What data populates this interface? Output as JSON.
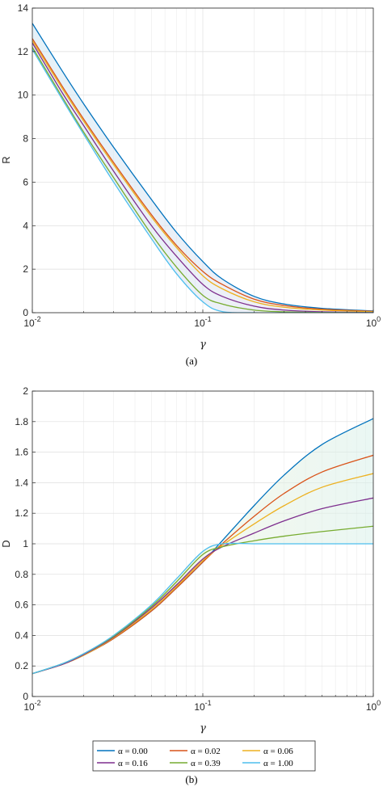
{
  "colors": {
    "series": [
      "#0072BD",
      "#D95319",
      "#EDB120",
      "#7E2F8E",
      "#77AC30",
      "#4DBEEE"
    ],
    "grid": "#e6e6e6",
    "axis": "#262626"
  },
  "legend": {
    "placement": "bottom-center",
    "columns": 3,
    "entries": [
      "α = 0.00",
      "α = 0.02",
      "α = 0.06",
      "α = 0.16",
      "α = 0.39",
      "α = 1.00"
    ]
  },
  "chart_data": [
    {
      "type": "line",
      "caption": "(a)",
      "xlabel": "γ",
      "ylabel": "R",
      "xscale": "log",
      "xlim": [
        0.01,
        1
      ],
      "ylim": [
        0,
        14
      ],
      "grid": true,
      "x_tick_labels": [
        "10^-2",
        "10^-1",
        "10^0"
      ],
      "y_ticks": [
        0,
        2,
        4,
        6,
        8,
        10,
        12,
        14
      ],
      "x": [
        0.01,
        0.015,
        0.02,
        0.03,
        0.05,
        0.07,
        0.1,
        0.13,
        0.2,
        0.3,
        0.5,
        1.0
      ],
      "series": [
        {
          "name": "α = 0.00",
          "values": [
            13.3,
            11.1,
            9.6,
            7.6,
            5.2,
            3.7,
            2.35,
            1.55,
            0.75,
            0.4,
            0.2,
            0.08
          ]
        },
        {
          "name": "α = 0.02",
          "values": [
            12.6,
            10.4,
            8.9,
            6.9,
            4.5,
            3.1,
            1.9,
            1.3,
            0.62,
            0.33,
            0.16,
            0.06
          ]
        },
        {
          "name": "α = 0.06",
          "values": [
            12.5,
            10.3,
            8.8,
            6.8,
            4.4,
            3.0,
            1.7,
            1.1,
            0.5,
            0.25,
            0.12,
            0.04
          ]
        },
        {
          "name": "α = 0.16",
          "values": [
            12.4,
            10.1,
            8.6,
            6.5,
            4.0,
            2.6,
            1.3,
            0.75,
            0.3,
            0.12,
            0.04,
            0.01
          ]
        },
        {
          "name": "α = 0.39",
          "values": [
            12.2,
            9.9,
            8.3,
            6.2,
            3.6,
            2.1,
            0.8,
            0.4,
            0.12,
            0.04,
            0.01,
            0.0
          ]
        },
        {
          "name": "α = 1.00",
          "values": [
            12.1,
            9.8,
            8.2,
            6.0,
            3.4,
            1.8,
            0.5,
            0.05,
            0.0,
            0.0,
            0.0,
            0.0
          ]
        }
      ]
    },
    {
      "type": "line",
      "caption": "(b)",
      "xlabel": "γ",
      "ylabel": "D",
      "xscale": "log",
      "xlim": [
        0.01,
        1
      ],
      "ylim": [
        0,
        2
      ],
      "grid": true,
      "x_tick_labels": [
        "10^-2",
        "10^-1",
        "10^0"
      ],
      "y_ticks": [
        0,
        0.2,
        0.4,
        0.6,
        0.8,
        1,
        1.2,
        1.4,
        1.6,
        1.8,
        2
      ],
      "x": [
        0.01,
        0.015,
        0.02,
        0.03,
        0.05,
        0.07,
        0.1,
        0.13,
        0.2,
        0.3,
        0.5,
        1.0
      ],
      "series": [
        {
          "name": "α = 0.00",
          "values": [
            0.15,
            0.21,
            0.27,
            0.38,
            0.56,
            0.71,
            0.88,
            1.02,
            1.25,
            1.45,
            1.65,
            1.82
          ]
        },
        {
          "name": "α = 0.02",
          "values": [
            0.15,
            0.21,
            0.27,
            0.38,
            0.56,
            0.71,
            0.88,
            1.0,
            1.18,
            1.33,
            1.47,
            1.58
          ]
        },
        {
          "name": "α = 0.06",
          "values": [
            0.15,
            0.21,
            0.27,
            0.385,
            0.57,
            0.72,
            0.89,
            0.99,
            1.13,
            1.25,
            1.37,
            1.46
          ]
        },
        {
          "name": "α = 0.16",
          "values": [
            0.15,
            0.21,
            0.275,
            0.39,
            0.58,
            0.73,
            0.9,
            0.98,
            1.07,
            1.15,
            1.23,
            1.3
          ]
        },
        {
          "name": "α = 0.39",
          "values": [
            0.15,
            0.215,
            0.28,
            0.395,
            0.59,
            0.75,
            0.93,
            0.98,
            1.02,
            1.05,
            1.08,
            1.115
          ]
        },
        {
          "name": "α = 1.00",
          "values": [
            0.15,
            0.215,
            0.28,
            0.4,
            0.6,
            0.77,
            0.95,
            1.0,
            1.0,
            1.0,
            1.0,
            1.0
          ]
        }
      ]
    }
  ]
}
